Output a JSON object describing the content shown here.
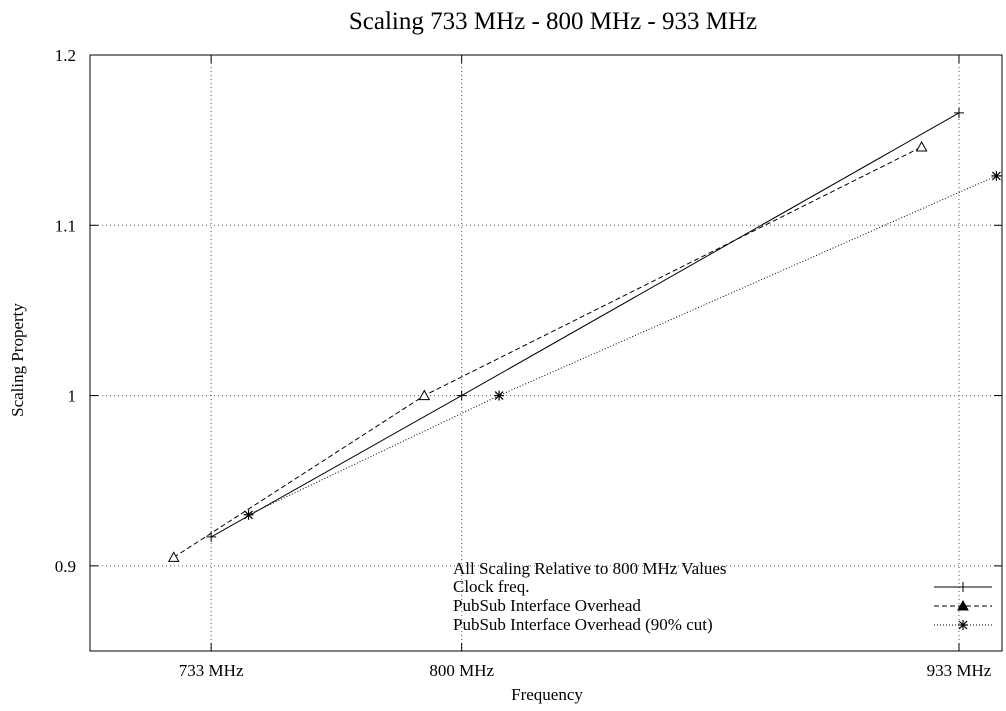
{
  "chart_data": {
    "type": "line",
    "title": "Scaling 733 MHz - 800 MHz - 933 MHz",
    "xlabel": "Frequency",
    "ylabel": "Scaling Property",
    "x_ticks": [
      {
        "label": "733 MHz",
        "value": 733
      },
      {
        "label": "800 MHz",
        "value": 800
      },
      {
        "label": "933 MHz",
        "value": 933
      }
    ],
    "y_ticks": [
      {
        "label": "0.9",
        "value": 0.9
      },
      {
        "label": "1",
        "value": 1.0
      },
      {
        "label": "1.1",
        "value": 1.1
      },
      {
        "label": "1.2",
        "value": 1.2
      }
    ],
    "xlim": [
      700.6,
      944.5
    ],
    "ylim": [
      0.85,
      1.2
    ],
    "grid": true,
    "legend_title": "All Scaling Relative to 800 MHz Values",
    "legend_position": "bottom-right",
    "series": [
      {
        "name": "Clock freq.",
        "style": "solid",
        "marker": "plus",
        "color": "#000000",
        "points": [
          [
            733,
            0.917
          ],
          [
            800,
            1.0
          ],
          [
            933,
            1.166
          ]
        ]
      },
      {
        "name": "PubSub Interface Overhead",
        "style": "dashed",
        "marker": "triangle",
        "color": "#000000",
        "points": [
          [
            723,
            0.905
          ],
          [
            790,
            1.0
          ],
          [
            923,
            1.146
          ]
        ]
      },
      {
        "name": "PubSub Interface Overhead (90% cut)",
        "style": "dotted",
        "marker": "star",
        "color": "#000000",
        "points": [
          [
            743,
            0.93
          ],
          [
            810,
            1.0
          ],
          [
            943,
            1.129
          ]
        ]
      }
    ]
  }
}
